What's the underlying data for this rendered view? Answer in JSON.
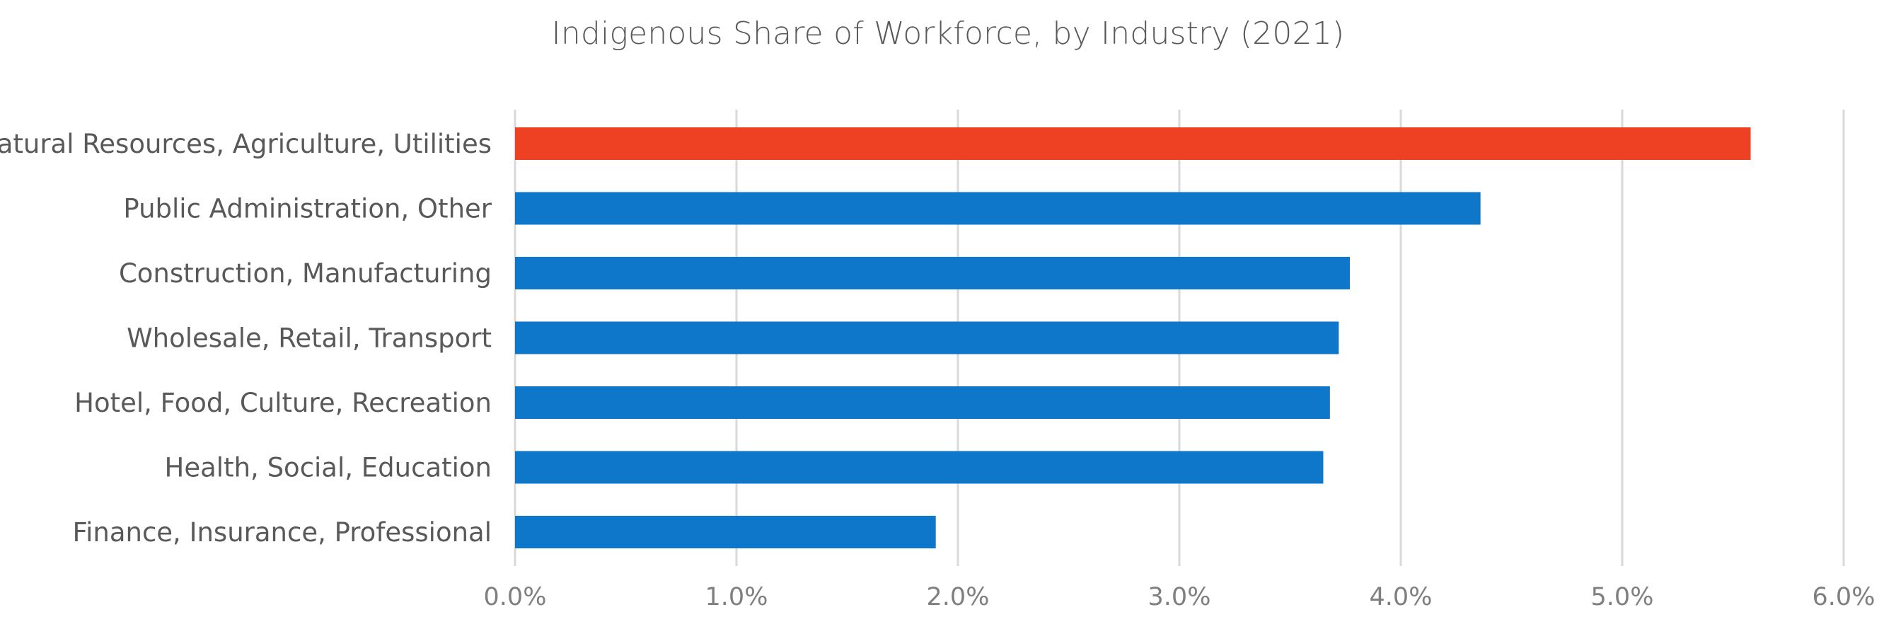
{
  "chart_data": {
    "type": "bar",
    "orientation": "horizontal",
    "title": "Indigenous Share of Workforce, by Industry (2021)",
    "xlabel": "",
    "ylabel": "",
    "categories": [
      "Natural Resources, Agriculture, Utilities",
      "Public Administration, Other",
      "Construction, Manufacturing",
      "Wholesale, Retail, Transport",
      "Hotel, Food, Culture, Recreation",
      "Health, Social, Education",
      "Finance, Insurance, Professional"
    ],
    "values": [
      5.58,
      4.36,
      3.77,
      3.72,
      3.68,
      3.65,
      1.9
    ],
    "value_unit": "%",
    "xlim": [
      0,
      6
    ],
    "x_ticks": [
      0,
      1,
      2,
      3,
      4,
      5,
      6
    ],
    "x_tick_labels": [
      "0.0%",
      "1.0%",
      "2.0%",
      "3.0%",
      "4.0%",
      "5.0%",
      "6.0%"
    ],
    "grid": "vertical",
    "legend": "none",
    "bar_colors": [
      "#ee4023",
      "#0e77c9",
      "#0e77c9",
      "#0e77c9",
      "#0e77c9",
      "#0e77c9",
      "#0e77c9"
    ],
    "gridline_color": "#d9d9d9",
    "text_color": "#595959"
  }
}
